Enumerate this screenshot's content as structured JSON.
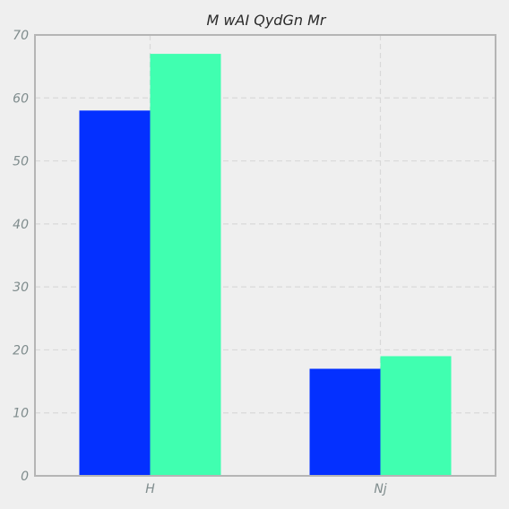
{
  "chart_data": {
    "type": "bar",
    "title": "M wAI QydGn Mr",
    "xlabel": "",
    "ylabel": "",
    "categories": [
      "H",
      "Nj"
    ],
    "series": [
      {
        "values": [
          58,
          17
        ],
        "color": "#0430ff"
      },
      {
        "values": [
          67,
          19
        ],
        "color": "#40ffb0"
      }
    ],
    "ylim": [
      0,
      70
    ],
    "yticks": [
      "0",
      "10",
      "20",
      "30",
      "40",
      "50",
      "60",
      "70"
    ],
    "grid": true,
    "legend": "none"
  }
}
